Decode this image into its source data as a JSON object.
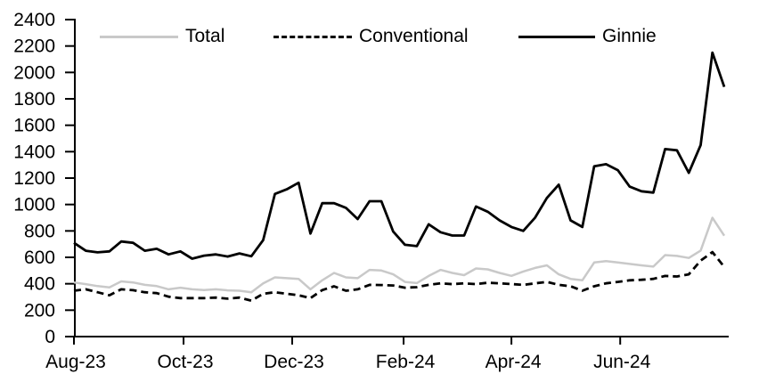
{
  "chart_data": {
    "type": "line",
    "title": "",
    "xlabel": "",
    "ylabel": "",
    "ylim": [
      0,
      2400
    ],
    "y_tick_step": 200,
    "y_ticks": [
      0,
      200,
      400,
      600,
      800,
      1000,
      1200,
      1400,
      1600,
      1800,
      2000,
      2200,
      2400
    ],
    "grid": false,
    "legend_position": "top",
    "x_ticks": [
      {
        "label": "Aug-23",
        "pos": 0
      },
      {
        "label": "Oct-23",
        "pos": 9.27
      },
      {
        "label": "Dec-23",
        "pos": 18.46
      },
      {
        "label": "Feb-24",
        "pos": 27.88
      },
      {
        "label": "Apr-24",
        "pos": 37.0
      },
      {
        "label": "Jun-24",
        "pos": 46.2
      }
    ],
    "x_unit": "week index from Aug-23",
    "series": [
      {
        "name": "Total",
        "color": "#c9c9c9",
        "style": "solid",
        "values": [
          410,
          397,
          382,
          372,
          418,
          410,
          392,
          382,
          358,
          370,
          358,
          352,
          358,
          350,
          347,
          336,
          403,
          448,
          442,
          437,
          358,
          426,
          482,
          448,
          442,
          505,
          500,
          471,
          414,
          405,
          459,
          505,
          482,
          465,
          516,
          509,
          482,
          460,
          493,
          520,
          539,
          471,
          437,
          426,
          561,
          572,
          561,
          550,
          539,
          530,
          617,
          611,
          595,
          651,
          899,
          764
        ]
      },
      {
        "name": "Conventional",
        "color": "#000000",
        "style": "dashed",
        "values": [
          347,
          358,
          336,
          313,
          358,
          351,
          336,
          329,
          302,
          291,
          291,
          291,
          295,
          287,
          295,
          272,
          324,
          336,
          324,
          313,
          291,
          352,
          381,
          347,
          358,
          392,
          390,
          387,
          370,
          374,
          392,
          403,
          397,
          403,
          397,
          408,
          403,
          398,
          392,
          403,
          414,
          392,
          381,
          347,
          381,
          403,
          414,
          426,
          430,
          437,
          459,
          455,
          471,
          575,
          640,
          527
        ]
      },
      {
        "name": "Ginnie",
        "color": "#000000",
        "style": "solid",
        "values": [
          710,
          650,
          638,
          645,
          720,
          710,
          650,
          665,
          622,
          645,
          590,
          613,
          622,
          606,
          630,
          608,
          730,
          1080,
          1115,
          1165,
          780,
          1010,
          1010,
          975,
          890,
          1025,
          1025,
          795,
          695,
          685,
          850,
          790,
          765,
          765,
          985,
          945,
          880,
          830,
          800,
          900,
          1050,
          1150,
          880,
          830,
          1290,
          1305,
          1260,
          1135,
          1100,
          1090,
          1420,
          1410,
          1240,
          1450,
          2150,
          1890
        ]
      }
    ]
  }
}
